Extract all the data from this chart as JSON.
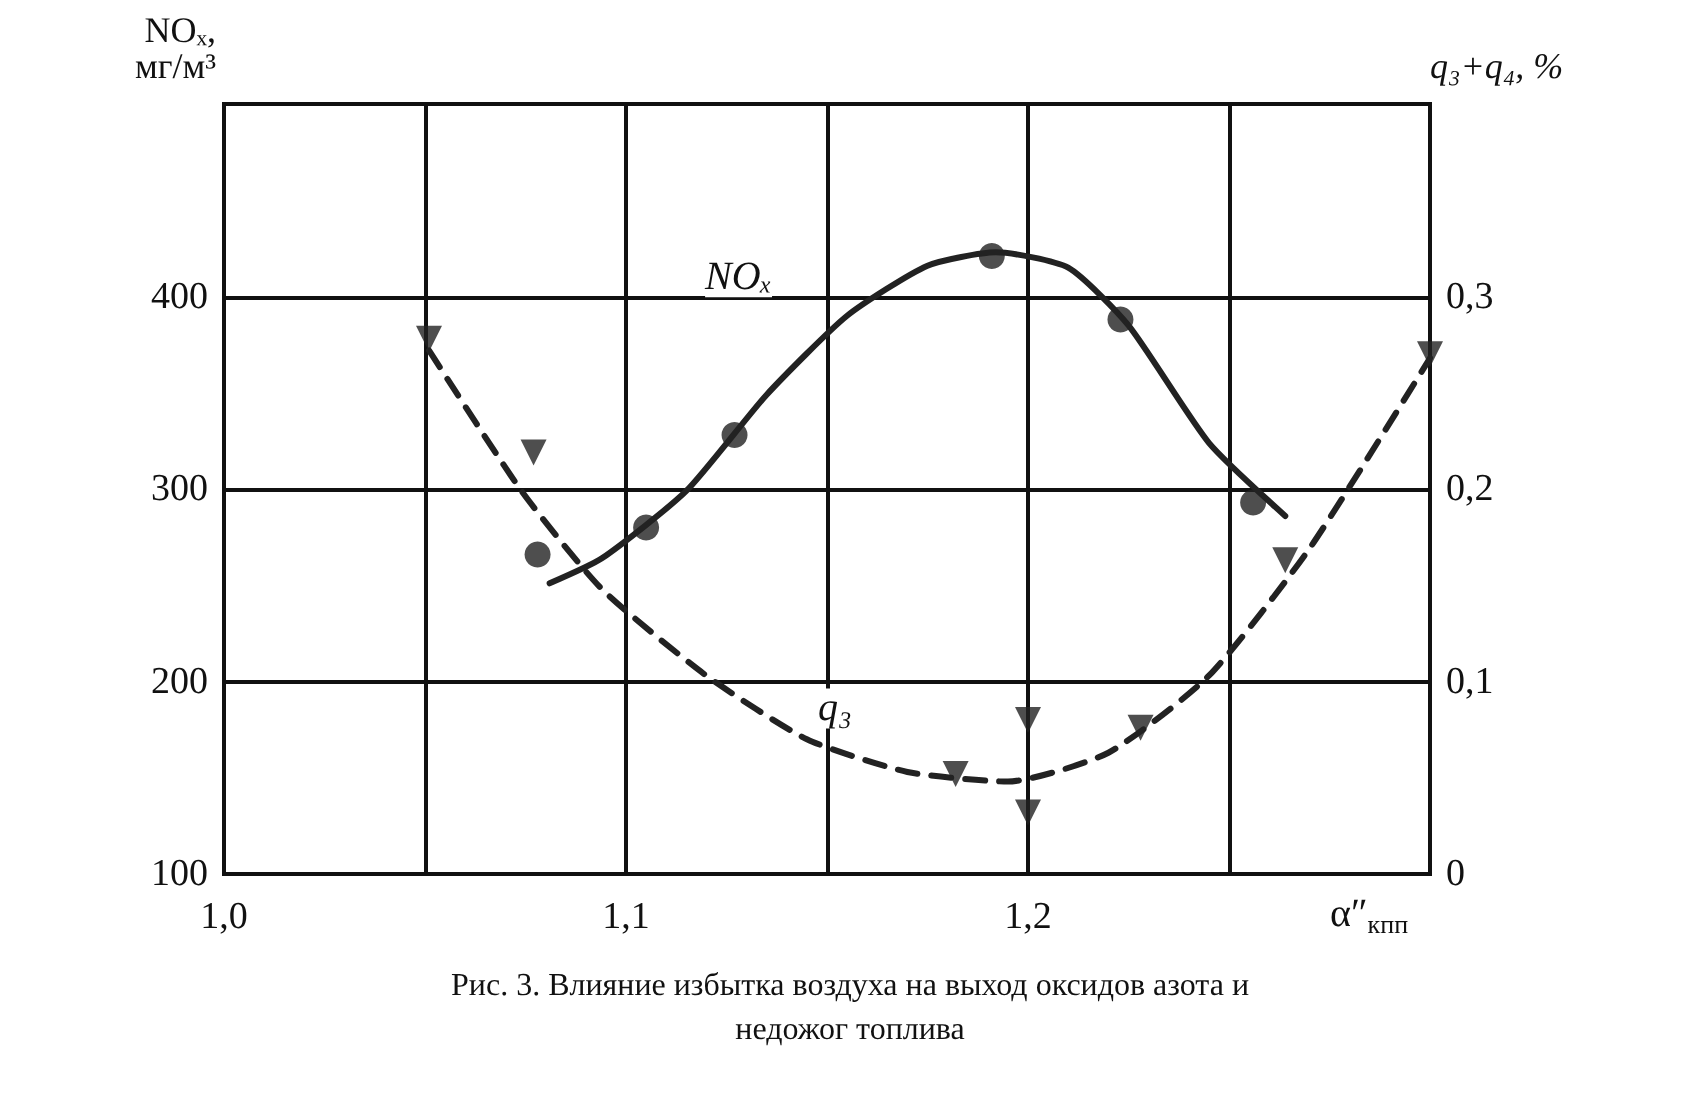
{
  "chart_data": {
    "type": "scatter",
    "title": "Рис. 3. Влияние избытка воздуха на выход оксидов азота и\nнедожог топлива",
    "xlabel": "α″$_{кпп}$",
    "ylabel": "NOₓ,\nмг/м³",
    "y2label": "q₃+q₄, %",
    "xlim": [
      1.0,
      1.3
    ],
    "xticks": [
      {
        "value": 1.0,
        "label": "1,0"
      },
      {
        "value": 1.05,
        "label": null
      },
      {
        "value": 1.1,
        "label": "1,1"
      },
      {
        "value": 1.15,
        "label": null
      },
      {
        "value": 1.2,
        "label": "1,2"
      },
      {
        "value": 1.25,
        "label": null
      },
      {
        "value": 1.3,
        "label": null
      }
    ],
    "ylim": [
      100,
      500
    ],
    "yticks": [
      100,
      200,
      300,
      400,
      {
        "value": 500,
        "label": null
      }
    ],
    "y2lim": [
      0,
      0.4
    ],
    "y2ticks": [
      0,
      {
        "value": 0.1,
        "label": "0,1"
      },
      {
        "value": 0.2,
        "label": "0,2"
      },
      {
        "value": 0.3,
        "label": "0,3"
      },
      {
        "value": 0.4,
        "label": null
      }
    ],
    "grid": true,
    "annotations": [
      {
        "text": "NOₓ",
        "x": 1.128,
        "y": 410
      },
      {
        "text": "q₃",
        "x": 1.152,
        "y": 186
      }
    ],
    "series": [
      {
        "color": "#222222",
        "marker": "circle",
        "x": [
          1.078,
          1.105,
          1.127,
          1.191,
          1.223,
          1.256
        ],
        "values": [
          266,
          280,
          328,
          421,
          388,
          293
        ]
      },
      {
        "type": "line",
        "color": "#222222",
        "marker": "none",
        "line_style": "solid",
        "x": [
          1.081,
          1.094,
          1.115,
          1.135,
          1.155,
          1.175,
          1.192,
          1.21,
          1.225,
          1.245,
          1.264
        ],
        "values": [
          251,
          264,
          299,
          349,
          390,
          416,
          423,
          415,
          385,
          324,
          286
        ]
      },
      {
        "axis": "y2",
        "color": "#222222",
        "marker": "triangle",
        "x": [
          1.051,
          1.077,
          1.182,
          1.2,
          1.2,
          1.228,
          1.264,
          1.3
        ],
        "values": [
          0.278,
          0.219,
          0.052,
          0.08,
          0.032,
          0.076,
          0.163,
          0.27
        ]
      },
      {
        "type": "line",
        "axis": "y2",
        "color": "#222222",
        "marker": "none",
        "line_style": "dashed",
        "x": [
          1.051,
          1.074,
          1.094,
          1.12,
          1.145,
          1.17,
          1.195,
          1.22,
          1.245,
          1.27,
          1.3
        ],
        "values": [
          0.272,
          0.199,
          0.148,
          0.103,
          0.07,
          0.053,
          0.048,
          0.063,
          0.103,
          0.169,
          0.268
        ]
      }
    ]
  }
}
